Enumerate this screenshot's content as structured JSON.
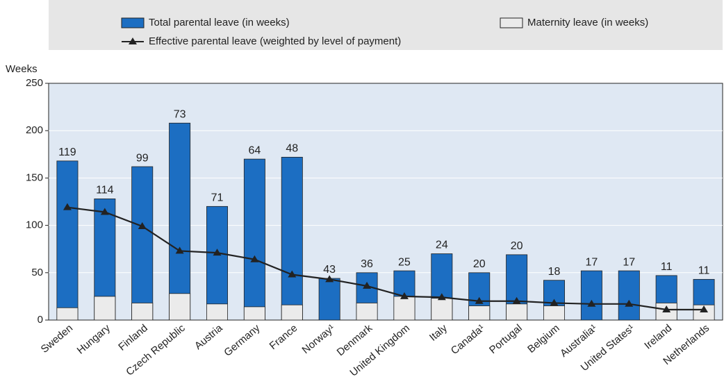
{
  "chart_data": {
    "type": "bar",
    "y_label": "Weeks",
    "categories": [
      "Sweden",
      "Hungary",
      "Finland",
      "Czech Republic",
      "Austria",
      "Germany",
      "France",
      "Norway¹",
      "Denmark",
      "United Kingdom",
      "Italy",
      "Canada¹",
      "Portugal",
      "Belgium",
      "Australia¹",
      "United States¹",
      "Ireland",
      "Netherlands"
    ],
    "series": [
      {
        "name": "Total parental leave (in weeks)",
        "type": "bar",
        "color": "#1c6ec2",
        "values": [
          168,
          128,
          162,
          208,
          120,
          170,
          172,
          44,
          50,
          52,
          70,
          50,
          69,
          42,
          52,
          52,
          47,
          43
        ]
      },
      {
        "name": "Maternity leave (in weeks)",
        "type": "bar",
        "color": "#ebebeb",
        "values": [
          13,
          25,
          18,
          28,
          17,
          14,
          16,
          0,
          18,
          25,
          23,
          15,
          17,
          15,
          0,
          0,
          18,
          16
        ]
      },
      {
        "name": "Effective parental leave (weighted by level of payment)",
        "type": "line",
        "color": "#222222",
        "values": [
          119,
          114,
          99,
          73,
          71,
          64,
          48,
          43,
          36,
          25,
          24,
          20,
          20,
          18,
          17,
          17,
          11,
          11
        ]
      }
    ],
    "ylim": [
      0,
      250
    ],
    "yticks": [
      0,
      50,
      100,
      150,
      200,
      250
    ],
    "grid": true
  }
}
